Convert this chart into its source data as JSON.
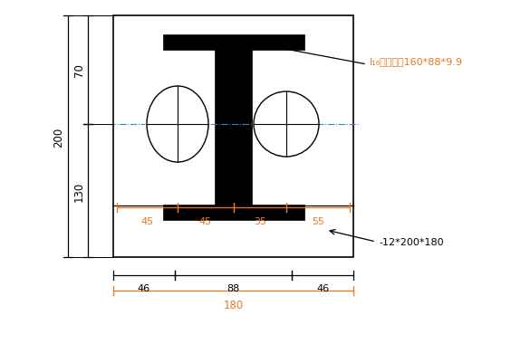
{
  "bg_color": "#ffffff",
  "label_i16": "I₁₆工字锤为160*88*9.9",
  "label_plate": "-12*200*180",
  "dim_70": "70",
  "dim_200": "200",
  "dim_130": "130",
  "dim_45a": "45",
  "dim_45b": "45",
  "dim_35": "35",
  "dim_55": "55",
  "dim_46a": "46",
  "dim_88": "88",
  "dim_46b": "46",
  "dim_180": "180",
  "orange": "#E87820",
  "black": "#000000",
  "blue_dash": "#4080C0"
}
